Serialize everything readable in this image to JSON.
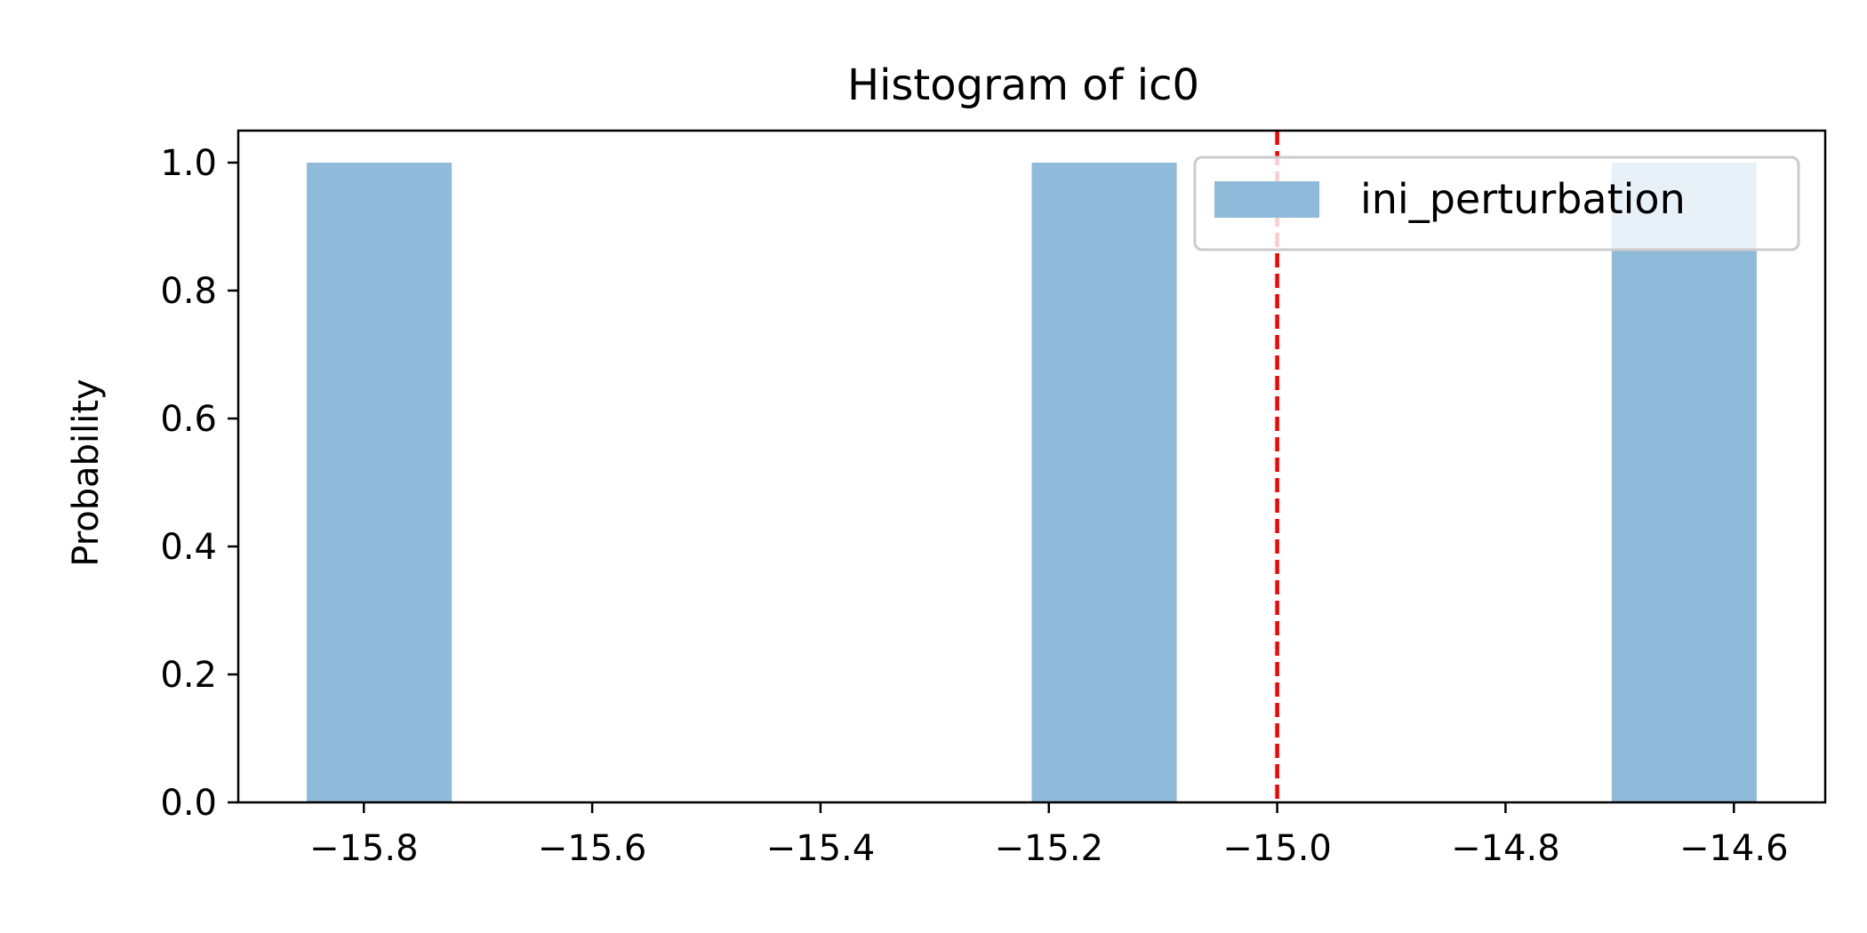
{
  "chart_data": {
    "type": "bar",
    "title": "Histogram of ic0",
    "xlabel": "",
    "ylabel": "Probability",
    "xlim": [
      -15.91,
      -14.52
    ],
    "ylim": [
      0,
      1.05
    ],
    "x_ticks": [
      -15.8,
      -15.6,
      -15.4,
      -15.2,
      -15.0,
      -14.8,
      -14.6
    ],
    "x_tick_labels": [
      "−15.8",
      "−15.6",
      "−15.4",
      "−15.2",
      "−15.0",
      "−14.8",
      "−14.6"
    ],
    "y_ticks": [
      0.0,
      0.2,
      0.4,
      0.6,
      0.8,
      1.0
    ],
    "y_tick_labels": [
      "0.0",
      "0.2",
      "0.4",
      "0.6",
      "0.8",
      "1.0"
    ],
    "grid": false,
    "series": [
      {
        "name": "ini_perturbation",
        "color": "#8fbad9",
        "bins": [
          {
            "x0": -15.85,
            "x1": -15.723,
            "value": 1.0
          },
          {
            "x0": -15.215,
            "x1": -15.088,
            "value": 1.0
          },
          {
            "x0": -14.707,
            "x1": -14.58,
            "value": 1.0
          }
        ]
      }
    ],
    "reference_line": {
      "x": -15.0,
      "color": "#ff0000",
      "style": "dashed"
    },
    "legend": {
      "position": "top-right"
    }
  }
}
